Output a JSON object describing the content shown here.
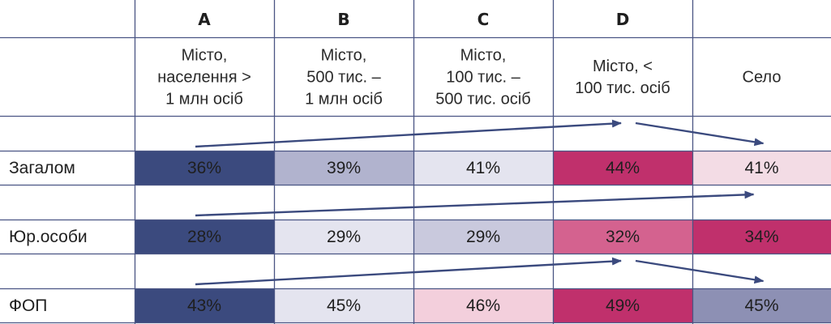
{
  "chart_data": {
    "type": "table",
    "columns": [
      {
        "letter": "A",
        "label_lines": [
          "Місто,",
          "населення >",
          "1 млн осіб"
        ]
      },
      {
        "letter": "B",
        "label_lines": [
          "Місто,",
          "500 тис. –",
          "1 млн осіб"
        ]
      },
      {
        "letter": "C",
        "label_lines": [
          "Місто,",
          "100 тис. –",
          "500 тис. осіб"
        ]
      },
      {
        "letter": "D",
        "label_lines": [
          "Місто, <",
          "100 тис. осіб"
        ]
      },
      {
        "letter": "",
        "label_lines": [
          "Село"
        ]
      }
    ],
    "rows": [
      {
        "label": "Загалом",
        "values": [
          "36%",
          "39%",
          "41%",
          "44%",
          "41%"
        ],
        "fills": [
          "#3b4a7e",
          "#b1b3ce",
          "#e4e4ef",
          "#c0306c",
          "#f3dce5"
        ],
        "trend_arrows": [
          {
            "from_col": 0,
            "to_col": 3
          },
          {
            "from_col": 3,
            "to_col": 4
          }
        ]
      },
      {
        "label": "Юр.особи",
        "values": [
          "28%",
          "29%",
          "29%",
          "32%",
          "34%"
        ],
        "fills": [
          "#3b4a7e",
          "#e4e4ef",
          "#c9c9dd",
          "#d4628f",
          "#c0306c"
        ],
        "trend_arrows": [
          {
            "from_col": 0,
            "to_col": 4
          }
        ]
      },
      {
        "label": "ФОП",
        "values": [
          "43%",
          "45%",
          "46%",
          "49%",
          "45%"
        ],
        "fills": [
          "#3b4a7e",
          "#e4e4ef",
          "#f3cfdc",
          "#c0306c",
          "#8d90b4"
        ],
        "trend_arrows": [
          {
            "from_col": 0,
            "to_col": 3
          },
          {
            "from_col": 3,
            "to_col": 4
          }
        ]
      }
    ],
    "colors": {
      "grid": "#4a5584",
      "arrow": "#3b4a7e",
      "text_dark": "#1f1f1f"
    }
  }
}
